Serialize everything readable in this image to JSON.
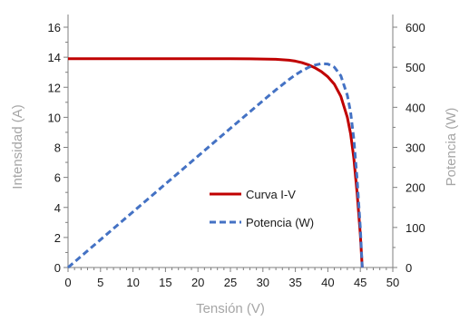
{
  "chart_data": {
    "type": "line",
    "xlabel": "Tensión (V)",
    "ylabel": "Intensidad (A)",
    "y2label": "Potencia (W)",
    "xlim": [
      0,
      50
    ],
    "ylim": [
      0,
      16
    ],
    "y2lim": [
      0,
      600
    ],
    "xticks": [
      0,
      5,
      10,
      15,
      20,
      25,
      30,
      35,
      40,
      45,
      50
    ],
    "yticks": [
      0,
      2,
      4,
      6,
      8,
      10,
      12,
      14,
      16
    ],
    "y2ticks": [
      0,
      100,
      200,
      300,
      400,
      500,
      600
    ],
    "grid": false,
    "legend_position": "center",
    "series": [
      {
        "name": "Curva I-V",
        "axis": "left",
        "color": "#c00000",
        "style": "solid",
        "x": [
          0,
          5,
          10,
          15,
          20,
          25,
          28,
          30,
          32,
          34,
          35,
          36,
          37,
          38,
          39,
          40,
          41,
          42,
          43,
          43.5,
          44,
          44.5,
          45,
          45.3
        ],
        "y": [
          13.9,
          13.9,
          13.9,
          13.9,
          13.9,
          13.9,
          13.89,
          13.88,
          13.86,
          13.8,
          13.74,
          13.64,
          13.5,
          13.3,
          13.05,
          12.7,
          12.2,
          11.4,
          10.0,
          8.9,
          7.3,
          5.0,
          2.2,
          0
        ]
      },
      {
        "name": "Potencia (W)",
        "axis": "right",
        "color": "#4472c4",
        "style": "dashed",
        "x": [
          0,
          5,
          10,
          15,
          20,
          25,
          30,
          32,
          34,
          35,
          36,
          37,
          38,
          39,
          40,
          41,
          42,
          43,
          43.5,
          44,
          44.5,
          45,
          45.3
        ],
        "y": [
          0,
          69.5,
          139,
          208.5,
          278,
          347.5,
          416.4,
          443.5,
          469.2,
          480.9,
          491,
          499.5,
          505.4,
          509,
          508,
          500.2,
          478.8,
          430,
          387.2,
          321.2,
          222.5,
          99,
          0
        ]
      }
    ]
  }
}
